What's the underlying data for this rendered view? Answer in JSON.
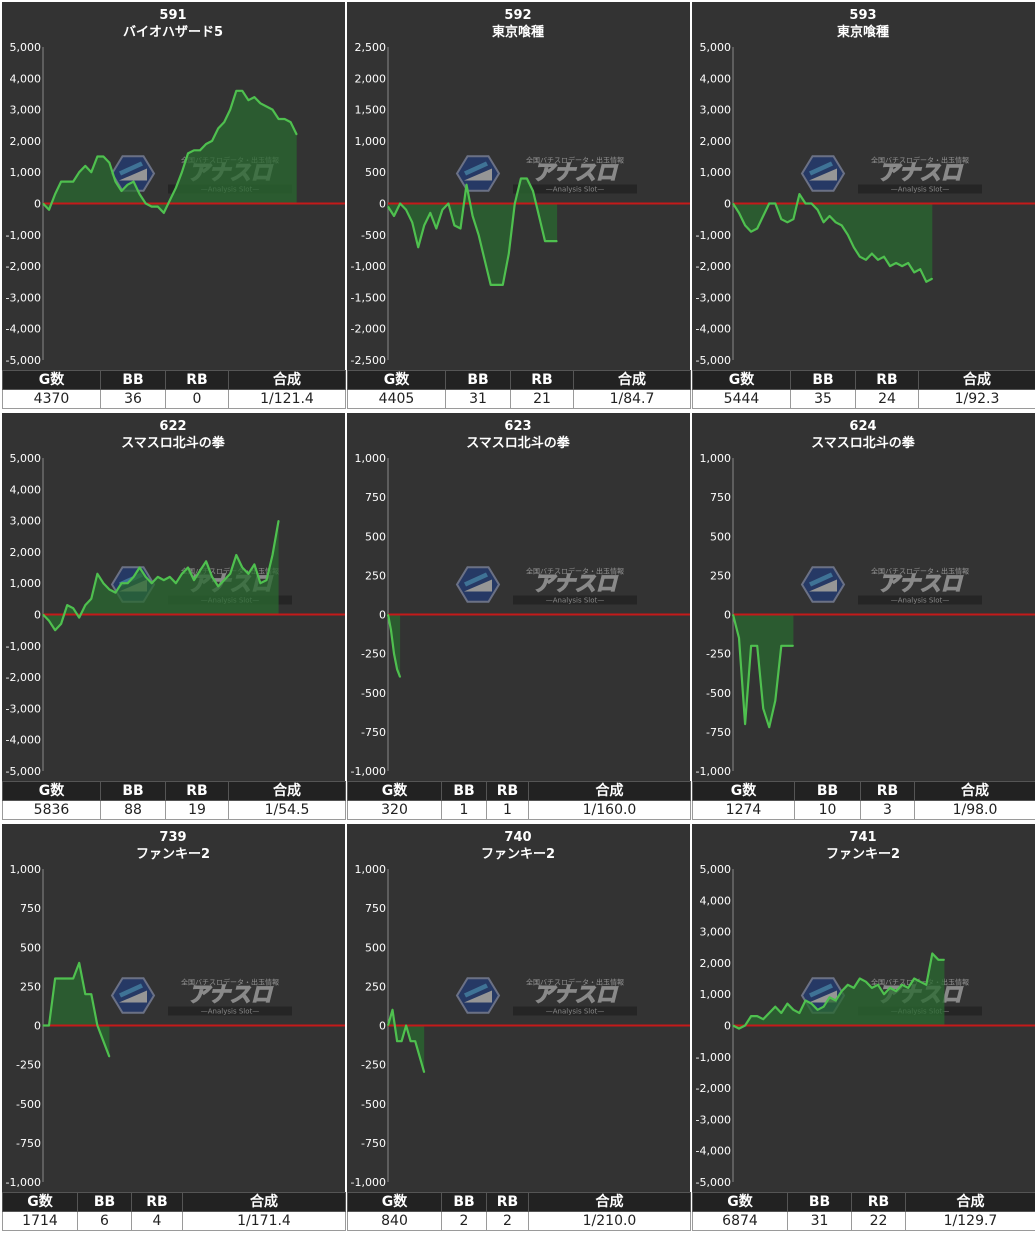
{
  "stat_headers": [
    "G数",
    "BB",
    "RB",
    "合成"
  ],
  "watermark": {
    "top_text": "全国バチスロデータ・出玉情報",
    "logo_text": "アナスロ",
    "sub_text": "—Analysis Slot—"
  },
  "colors": {
    "panel_bg": "#333333",
    "line": "#4fc04f",
    "fill": "#2a6a30",
    "zero_line": "#c41a1a",
    "text": "#ffffff"
  },
  "panels": [
    {
      "number": "591",
      "title": "バイオハザード5",
      "stats": [
        "4370",
        "36",
        "0",
        "1/121.4"
      ],
      "ticks": [
        "5,000",
        "4,000",
        "3,000",
        "2,000",
        "1,000",
        "0",
        "-1,000",
        "-2,000",
        "-3,000",
        "-4,000",
        "-5,000"
      ],
      "chart_data": {
        "type": "area",
        "ylim": [
          -5000,
          5000
        ],
        "x": [
          0,
          0.02,
          0.04,
          0.06,
          0.08,
          0.1,
          0.12,
          0.14,
          0.16,
          0.18,
          0.2,
          0.22,
          0.24,
          0.26,
          0.28,
          0.3,
          0.32,
          0.34,
          0.36,
          0.38,
          0.4,
          0.42,
          0.44,
          0.46,
          0.48,
          0.5,
          0.52,
          0.54,
          0.56,
          0.58,
          0.6,
          0.62,
          0.64,
          0.66,
          0.68,
          0.7,
          0.72,
          0.74,
          0.76,
          0.78,
          0.8,
          0.82,
          0.84,
          0.86,
          0.88,
          0.9,
          0.92,
          0.94,
          0.96,
          0.98,
          1.0
        ],
        "y": [
          0,
          -200,
          300,
          700,
          700,
          700,
          1000,
          1200,
          1000,
          1500,
          1500,
          1300,
          700,
          400,
          600,
          700,
          300,
          0,
          -100,
          -100,
          -300,
          100,
          500,
          1000,
          1600,
          1700,
          1700,
          1900,
          2000,
          2400,
          2600,
          3000,
          3600,
          3600,
          3300,
          3400,
          3200,
          3100,
          3000,
          2700,
          2700,
          2600,
          2200,
          null,
          null,
          null,
          null,
          null,
          null,
          null,
          null
        ]
      }
    },
    {
      "number": "592",
      "title": "東京喰種",
      "stats": [
        "4405",
        "31",
        "21",
        "1/84.7"
      ],
      "ticks": [
        "2,500",
        "2,000",
        "1,500",
        "1,000",
        "500",
        "0",
        "-500",
        "-1,000",
        "-1,500",
        "-2,000",
        "-2,500"
      ],
      "chart_data": {
        "type": "area",
        "ylim": [
          -2500,
          2500
        ],
        "x": [
          0,
          0.02,
          0.04,
          0.06,
          0.08,
          0.1,
          0.12,
          0.14,
          0.16,
          0.18,
          0.2,
          0.22,
          0.24,
          0.26,
          0.28,
          0.3,
          0.32,
          0.34,
          0.36,
          0.38,
          0.4,
          0.42,
          0.44,
          0.46,
          0.48,
          0.5,
          0.52,
          0.54,
          0.56,
          0.58,
          0.6,
          0.62
        ],
        "y": [
          -50,
          -200,
          0,
          -100,
          -300,
          -700,
          -350,
          -150,
          -400,
          -100,
          0,
          -350,
          -400,
          300,
          -200,
          -500,
          -900,
          -1300,
          -1300,
          -1300,
          -800,
          0,
          400,
          400,
          200,
          -200,
          -600,
          -600,
          -600,
          null,
          null,
          null
        ]
      }
    },
    {
      "number": "593",
      "title": "東京喰種",
      "stats": [
        "5444",
        "35",
        "24",
        "1/92.3"
      ],
      "ticks": [
        "5,000",
        "4,000",
        "3,000",
        "2,000",
        "1,000",
        "0",
        "-1,000",
        "-2,000",
        "-3,000",
        "-4,000",
        "-5,000"
      ],
      "chart_data": {
        "type": "area",
        "ylim": [
          -5000,
          5000
        ],
        "x": [
          0,
          0.02,
          0.04,
          0.06,
          0.08,
          0.1,
          0.12,
          0.14,
          0.16,
          0.18,
          0.2,
          0.22,
          0.24,
          0.26,
          0.28,
          0.3,
          0.32,
          0.34,
          0.36,
          0.38,
          0.4,
          0.42,
          0.44,
          0.46,
          0.48,
          0.5,
          0.52,
          0.54,
          0.56,
          0.58,
          0.6,
          0.62,
          0.64,
          0.66,
          0.68,
          0.7,
          0.72,
          0.74,
          0.76,
          0.78,
          0.8,
          0.82,
          0.84,
          0.86,
          0.88,
          0.9,
          0.92,
          0.94,
          0.96,
          0.98,
          1.0
        ],
        "y": [
          0,
          -300,
          -700,
          -900,
          -800,
          -400,
          0,
          0,
          -500,
          -600,
          -500,
          300,
          0,
          0,
          -200,
          -600,
          -400,
          -600,
          -700,
          -1000,
          -1400,
          -1700,
          -1800,
          -1600,
          -1800,
          -1700,
          -2000,
          -1900,
          -2000,
          -1900,
          -2200,
          -2100,
          -2500,
          -2400,
          null,
          null,
          null,
          null,
          null,
          null,
          null,
          null,
          null,
          null,
          null,
          null,
          null,
          null,
          null,
          null,
          null
        ]
      }
    },
    {
      "number": "622",
      "title": "スマスロ北斗の拳",
      "stats": [
        "5836",
        "88",
        "19",
        "1/54.5"
      ],
      "ticks": [
        "5,000",
        "4,000",
        "3,000",
        "2,000",
        "1,000",
        "0",
        "-1,000",
        "-2,000",
        "-3,000",
        "-4,000",
        "-5,000"
      ],
      "chart_data": {
        "type": "area",
        "ylim": [
          -5000,
          5000
        ],
        "x": [
          0,
          0.02,
          0.04,
          0.06,
          0.08,
          0.1,
          0.12,
          0.14,
          0.16,
          0.18,
          0.2,
          0.22,
          0.24,
          0.26,
          0.28,
          0.3,
          0.32,
          0.34,
          0.36,
          0.38,
          0.4,
          0.42,
          0.44,
          0.46,
          0.48,
          0.5,
          0.52,
          0.54,
          0.56,
          0.58,
          0.6,
          0.62,
          0.64,
          0.66,
          0.68,
          0.7,
          0.72,
          0.74,
          0.76,
          0.78,
          0.8,
          0.82,
          0.84,
          0.86,
          0.88,
          0.9
        ],
        "y": [
          0,
          -200,
          -500,
          -300,
          300,
          200,
          -100,
          300,
          500,
          1300,
          1000,
          800,
          700,
          1000,
          1000,
          1200,
          1500,
          1200,
          1000,
          1200,
          1100,
          1200,
          1000,
          1300,
          1500,
          1100,
          1400,
          1700,
          1200,
          900,
          1100,
          1300,
          1900,
          1500,
          1300,
          1600,
          1000,
          1100,
          1900,
          3000,
          null,
          null,
          null,
          null,
          null,
          null
        ]
      }
    },
    {
      "number": "623",
      "title": "スマスロ北斗の拳",
      "stats": [
        "320",
        "1",
        "1",
        "1/160.0"
      ],
      "ticks": [
        "1,000",
        "750",
        "500",
        "250",
        "0",
        "-250",
        "-500",
        "-750",
        "-1,000"
      ],
      "chart_data": {
        "type": "area",
        "ylim": [
          -1000,
          1000
        ],
        "x": [
          0,
          0.01,
          0.02,
          0.03,
          0.04
        ],
        "y": [
          0,
          -100,
          -250,
          -350,
          -400
        ]
      }
    },
    {
      "number": "624",
      "title": "スマスロ北斗の拳",
      "stats": [
        "1274",
        "10",
        "3",
        "1/98.0"
      ],
      "ticks": [
        "1,000",
        "750",
        "500",
        "250",
        "0",
        "-250",
        "-500",
        "-750",
        "-1,000"
      ],
      "chart_data": {
        "type": "area",
        "ylim": [
          -1000,
          1000
        ],
        "x": [
          0,
          0.02,
          0.04,
          0.06,
          0.08,
          0.1,
          0.12,
          0.14,
          0.16,
          0.18,
          0.2
        ],
        "y": [
          0,
          -150,
          -700,
          -200,
          -200,
          -600,
          -720,
          -550,
          -200,
          -200,
          -200
        ]
      }
    },
    {
      "number": "739",
      "title": "ファンキー2",
      "stats": [
        "1714",
        "6",
        "4",
        "1/171.4"
      ],
      "ticks": [
        "1,000",
        "750",
        "500",
        "250",
        "0",
        "-250",
        "-500",
        "-750",
        "-1,000"
      ],
      "chart_data": {
        "type": "area",
        "ylim": [
          -1000,
          1000
        ],
        "x": [
          0,
          0.02,
          0.04,
          0.06,
          0.08,
          0.1,
          0.12,
          0.14,
          0.16,
          0.18,
          0.2,
          0.22
        ],
        "y": [
          0,
          0,
          300,
          300,
          300,
          300,
          400,
          200,
          200,
          0,
          -100,
          -200
        ]
      }
    },
    {
      "number": "740",
      "title": "ファンキー2",
      "stats": [
        "840",
        "2",
        "2",
        "1/210.0"
      ],
      "ticks": [
        "1,000",
        "750",
        "500",
        "250",
        "0",
        "-250",
        "-500",
        "-750",
        "-1,000"
      ],
      "chart_data": {
        "type": "area",
        "ylim": [
          -1000,
          1000
        ],
        "x": [
          0,
          0.015,
          0.03,
          0.045,
          0.06,
          0.075,
          0.09,
          0.105,
          0.12
        ],
        "y": [
          0,
          100,
          -100,
          -100,
          0,
          -100,
          -100,
          -200,
          -300
        ]
      }
    },
    {
      "number": "741",
      "title": "ファンキー2",
      "stats": [
        "6874",
        "31",
        "22",
        "1/129.7"
      ],
      "ticks": [
        "5,000",
        "4,000",
        "3,000",
        "2,000",
        "1,000",
        "0",
        "-1,000",
        "-2,000",
        "-3,000",
        "-4,000",
        "-5,000"
      ],
      "chart_data": {
        "type": "area",
        "ylim": [
          -5000,
          5000
        ],
        "x": [
          0,
          0.02,
          0.04,
          0.06,
          0.08,
          0.1,
          0.12,
          0.14,
          0.16,
          0.18,
          0.2,
          0.22,
          0.24,
          0.26,
          0.28,
          0.3,
          0.32,
          0.34,
          0.36,
          0.38,
          0.4,
          0.42,
          0.44,
          0.46,
          0.48,
          0.5,
          0.52,
          0.54,
          0.56,
          0.58,
          0.6,
          0.62,
          0.64,
          0.66,
          0.68,
          0.7,
          0.72,
          0.74,
          0.76,
          0.78,
          0.8,
          0.82,
          0.84,
          0.86,
          0.88,
          0.9,
          0.92,
          0.94,
          0.96,
          0.98,
          1.0
        ],
        "y": [
          0,
          -100,
          0,
          300,
          300,
          200,
          400,
          600,
          400,
          700,
          500,
          400,
          800,
          700,
          500,
          600,
          900,
          800,
          1100,
          1300,
          1200,
          1500,
          1400,
          1200,
          1300,
          1000,
          1200,
          1100,
          1300,
          1200,
          1500,
          1400,
          1300,
          2300,
          2100,
          2100,
          null,
          null,
          null,
          null,
          null,
          null,
          null,
          null,
          null,
          null,
          null,
          null,
          null,
          null,
          null
        ]
      }
    }
  ]
}
